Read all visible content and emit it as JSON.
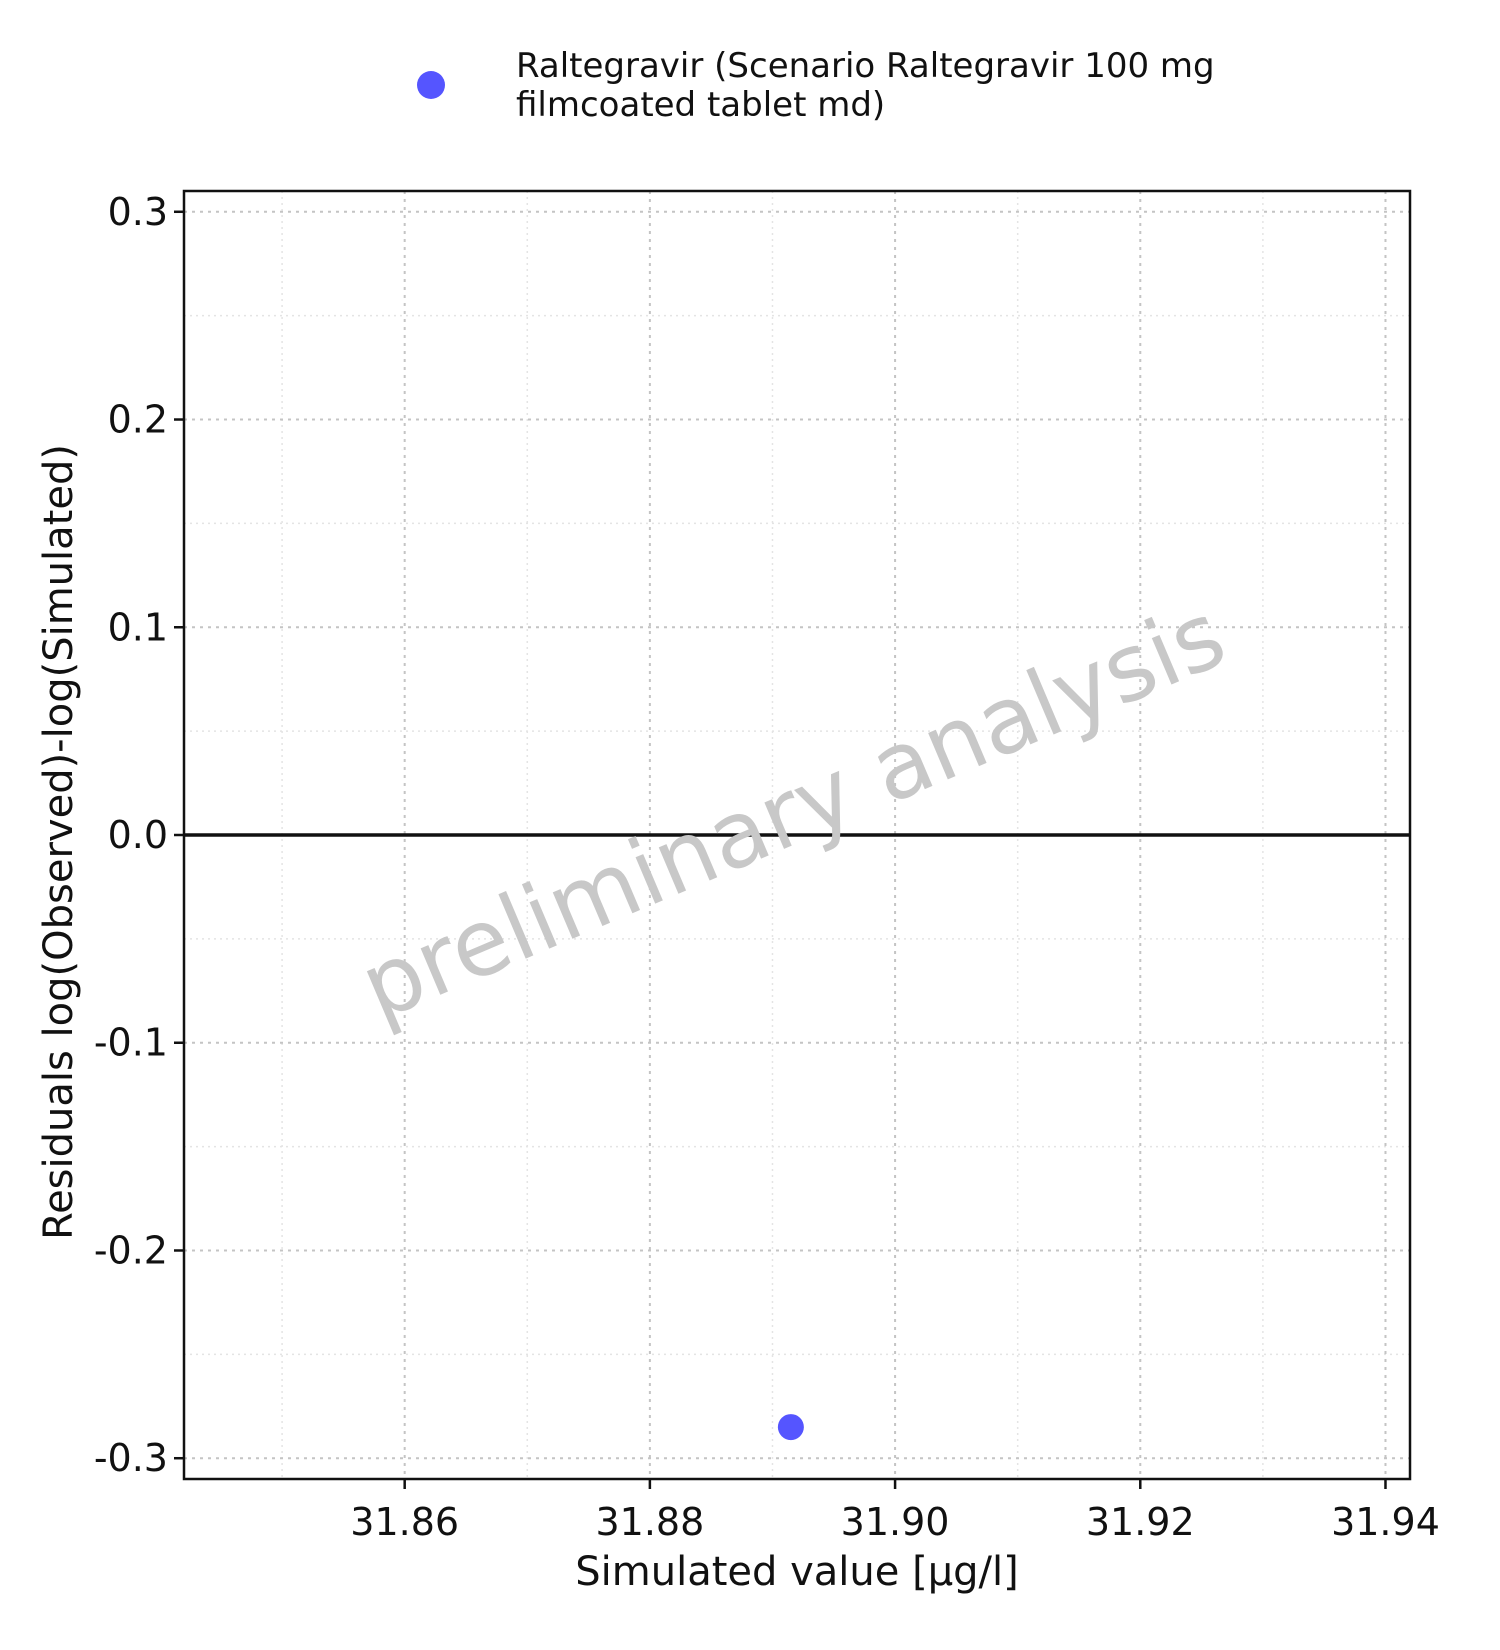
{
  "chart_data": {
    "type": "scatter",
    "title": "",
    "xlabel": "Simulated value [µg/l]",
    "ylabel": "Residuals log(Observed)-log(Simulated)",
    "xlim": [
      31.842,
      31.942
    ],
    "ylim": [
      -0.31,
      0.31
    ],
    "x_ticks": [
      31.86,
      31.88,
      31.9,
      31.92,
      31.94
    ],
    "x_tick_labels": [
      "31.86",
      "31.88",
      "31.90",
      "31.92",
      "31.94"
    ],
    "y_ticks": [
      0.3,
      0.2,
      0.1,
      0.0,
      -0.1,
      -0.2,
      -0.3
    ],
    "y_tick_labels": [
      "0.3",
      "0.2",
      "0.1",
      "0.0",
      "-0.1",
      "-0.2",
      "-0.3"
    ],
    "grid": true,
    "reference_line_y": 0.0,
    "legend_position": "top",
    "legend": {
      "line1": "Raltegravir (Scenario Raltegravir 100 mg",
      "line2": "filmcoated tablet md)"
    },
    "series": [
      {
        "name": "Raltegravir (Scenario Raltegravir 100 mg filmcoated tablet md)",
        "color": "#5555ff",
        "points": [
          {
            "x": 31.8915,
            "y": -0.285
          }
        ]
      }
    ],
    "watermark": "preliminary analysis"
  }
}
